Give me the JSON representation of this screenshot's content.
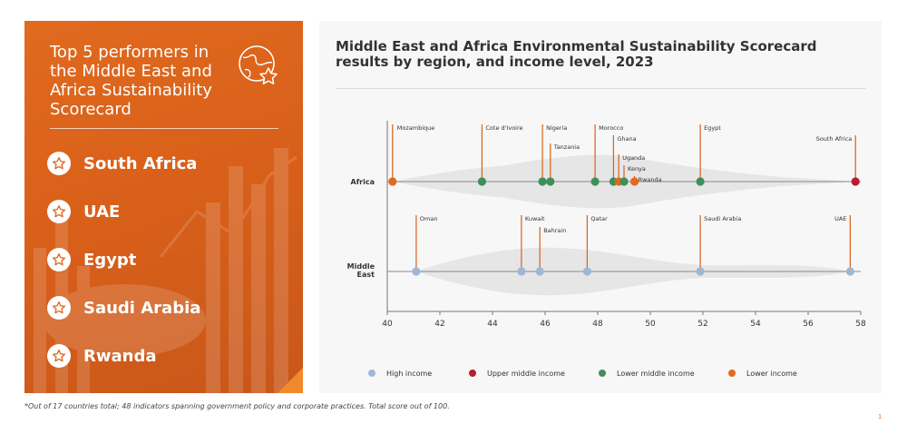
{
  "panel": {
    "title": "Top 5 performers in the Middle East and Africa Sustainability Scorecard",
    "performers": [
      "South Africa",
      "UAE",
      "Egypt",
      "Saudi Arabia",
      "Rwanda"
    ]
  },
  "footnote": "*Out of 17 countries total; 48 indicators spanning government policy and corporate practices. Total score out of 100.",
  "page_number": "1",
  "colors": {
    "orange_panel": "#dd651c",
    "high_income": "#9fb6d6",
    "upper_middle_income": "#b52030",
    "lower_middle_income": "#3f8f5a",
    "lower_income": "#e06a1e"
  },
  "chart_data": {
    "type": "scatter",
    "title": "Middle East and Africa Environmental Sustainability Scorecard results by region, and income level, 2023",
    "xlim": [
      40,
      58
    ],
    "x_ticks": [
      "40",
      "42",
      "44",
      "46",
      "48",
      "50",
      "52",
      "54",
      "56",
      "58"
    ],
    "categories": [
      "Africa",
      "Middle East"
    ],
    "legend": [
      {
        "name": "High income",
        "color": "#9fb6d6"
      },
      {
        "name": "Upper middle income",
        "color": "#b52030"
      },
      {
        "name": "Lower middle income",
        "color": "#3f8f5a"
      },
      {
        "name": "Lower income",
        "color": "#e06a1e"
      }
    ],
    "points": [
      {
        "label": "Mozambique",
        "region": "Africa",
        "x": 40.2,
        "income": "Lower income"
      },
      {
        "label": "Cote d'Ivoire",
        "region": "Africa",
        "x": 43.6,
        "income": "Lower middle income"
      },
      {
        "label": "Nigeria",
        "region": "Africa",
        "x": 45.9,
        "income": "Lower middle income"
      },
      {
        "label": "Tanzania",
        "region": "Africa",
        "x": 46.2,
        "income": "Lower middle income"
      },
      {
        "label": "Morocco",
        "region": "Africa",
        "x": 47.9,
        "income": "Lower middle income"
      },
      {
        "label": "Ghana",
        "region": "Africa",
        "x": 48.6,
        "income": "Lower middle income"
      },
      {
        "label": "Uganda",
        "region": "Africa",
        "x": 48.8,
        "income": "Lower income"
      },
      {
        "label": "Kenya",
        "region": "Africa",
        "x": 49.0,
        "income": "Lower middle income"
      },
      {
        "label": "Rwanda",
        "region": "Africa",
        "x": 49.4,
        "income": "Lower income"
      },
      {
        "label": "Egypt",
        "region": "Africa",
        "x": 51.9,
        "income": "Lower middle income"
      },
      {
        "label": "South Africa",
        "region": "Africa",
        "x": 57.8,
        "income": "Upper middle income"
      },
      {
        "label": "Oman",
        "region": "Middle East",
        "x": 41.1,
        "income": "High income"
      },
      {
        "label": "Kuwait",
        "region": "Middle East",
        "x": 45.1,
        "income": "High income"
      },
      {
        "label": "Bahrain",
        "region": "Middle East",
        "x": 45.8,
        "income": "High income"
      },
      {
        "label": "Qatar",
        "region": "Middle East",
        "x": 47.6,
        "income": "High income"
      },
      {
        "label": "Saudi Arabia",
        "region": "Middle East",
        "x": 51.9,
        "income": "High income"
      },
      {
        "label": "UAE",
        "region": "Middle East",
        "x": 57.6,
        "income": "High income"
      }
    ]
  }
}
